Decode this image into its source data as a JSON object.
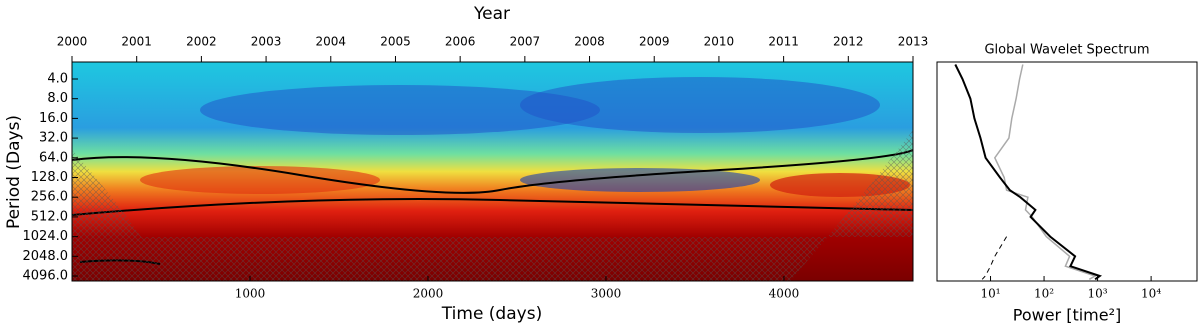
{
  "chart_data": [
    {
      "type": "heatmap",
      "x2label": "Year",
      "xlabel": "Time (days)",
      "ylabel": "Period (Days)",
      "xlim": [
        0,
        4725
      ],
      "xticks": [
        1000,
        2000,
        3000,
        4000
      ],
      "x2lim": [
        2000,
        2013
      ],
      "x2ticks": [
        2000,
        2001,
        2002,
        2003,
        2004,
        2005,
        2006,
        2007,
        2008,
        2009,
        2010,
        2011,
        2012,
        2013
      ],
      "ylim": [
        2.2,
        4880
      ],
      "log_y": true,
      "y_inverted": true,
      "yticks": [
        {
          "value": 4,
          "label": "4.0"
        },
        {
          "value": 8,
          "label": "8.0"
        },
        {
          "value": 16,
          "label": "16.0"
        },
        {
          "value": 32,
          "label": "32.0"
        },
        {
          "value": 64,
          "label": "64.0"
        },
        {
          "value": 128,
          "label": "128.0"
        },
        {
          "value": 256,
          "label": "256.0"
        },
        {
          "value": 512,
          "label": "512.0"
        },
        {
          "value": 1024,
          "label": "1024.0"
        },
        {
          "value": 2048,
          "label": "2048.0"
        },
        {
          "value": 4096,
          "label": "4096.0"
        }
      ]
    },
    {
      "type": "line",
      "title": "Global Wavelet Spectrum",
      "xlabel": "Power [time²]",
      "xlim": [
        1,
        72000
      ],
      "log_x": true,
      "ylim": [
        2.2,
        4880
      ],
      "log_y": true,
      "y_inverted": true,
      "xticks": [
        {
          "value": 10,
          "label": "10¹"
        },
        {
          "value": 100,
          "label": "10²"
        },
        {
          "value": 1000,
          "label": "10³"
        },
        {
          "value": 10000,
          "label": "10⁴"
        }
      ],
      "y": [
        2.4,
        4,
        8,
        16,
        32,
        64,
        128,
        200,
        256,
        400,
        512,
        1024,
        2048,
        2900,
        4096,
        4600
      ],
      "series": [
        {
          "color": "#aaaaaa",
          "values": [
            40,
            35,
            30,
            25,
            22,
            12,
            18,
            20,
            50,
            45,
            60,
            110,
            300,
            250,
            900,
            700
          ]
        },
        {
          "color": "#000000",
          "values": [
            2.2,
            3,
            4.2,
            5,
            6.5,
            8.1,
            15,
            23,
            36,
            69,
            56,
            130,
            380,
            310,
            1100,
            900
          ]
        },
        {
          "color": "#000000",
          "dash": true,
          "values": [
            null,
            null,
            null,
            null,
            null,
            null,
            null,
            null,
            null,
            null,
            null,
            20,
            12,
            10,
            8,
            7
          ]
        }
      ]
    }
  ]
}
